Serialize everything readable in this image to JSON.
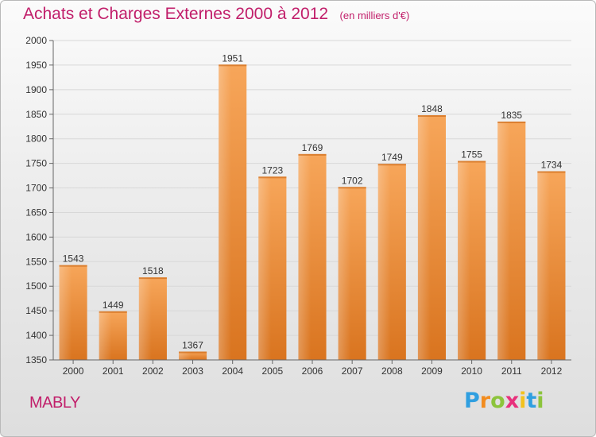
{
  "header": {
    "title": "Achats et Charges Externes 2000 à 2012",
    "subtitle": "(en milliers d'€)"
  },
  "commune": "MABLY",
  "logo": {
    "letters": [
      "P",
      "r",
      "o",
      "x",
      "i",
      "t",
      "i"
    ],
    "colors": [
      "#2f9fe0",
      "#f28c1e",
      "#8cc43c",
      "#e8307c",
      "#f2c21e",
      "#2f9fe0",
      "#8cc43c"
    ]
  },
  "colors": {
    "title": "#c11e6a",
    "bar_light": "#f7a65a",
    "bar_dark": "#d9741f",
    "grid": "#d8d8d8"
  },
  "chart_data": {
    "type": "bar",
    "title": "Achats et Charges Externes 2000 à 2012",
    "subtitle": "(en milliers d'€)",
    "categories": [
      "2000",
      "2001",
      "2002",
      "2003",
      "2004",
      "2005",
      "2006",
      "2007",
      "2008",
      "2009",
      "2010",
      "2011",
      "2012"
    ],
    "values": [
      1543,
      1449,
      1518,
      1367,
      1951,
      1723,
      1769,
      1702,
      1749,
      1848,
      1755,
      1835,
      1734
    ],
    "ylim": [
      1350,
      2000
    ],
    "yticks": [
      1350,
      1400,
      1450,
      1500,
      1550,
      1600,
      1650,
      1700,
      1750,
      1800,
      1850,
      1900,
      1950,
      2000
    ],
    "grid": true,
    "xlabel": "",
    "ylabel": ""
  }
}
